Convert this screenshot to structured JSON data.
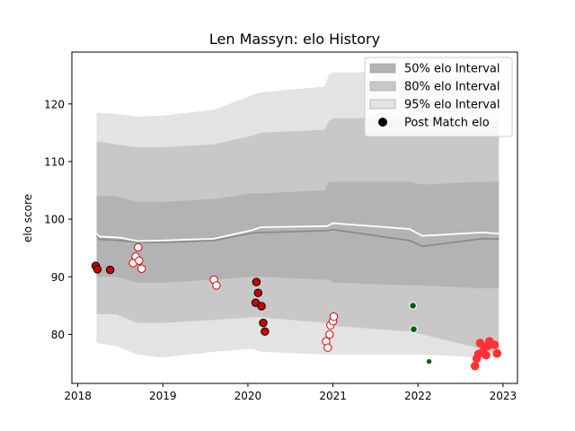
{
  "chart_data": {
    "type": "scatter",
    "title": "Len Massyn: elo History",
    "xlabel": "",
    "ylabel": "elo score",
    "xlim": [
      2017.93,
      2023.17
    ],
    "ylim": [
      71.5,
      129.0
    ],
    "x_ticks": [
      2018,
      2019,
      2020,
      2021,
      2022,
      2023
    ],
    "y_ticks": [
      80,
      90,
      100,
      110,
      120
    ],
    "grid": false,
    "legend_position": "top-right",
    "legend": [
      {
        "label": "50% elo Interval",
        "kind": "patch",
        "color": "#b3b3b3"
      },
      {
        "label": "80% elo Interval",
        "kind": "patch",
        "color": "#c8c8c8"
      },
      {
        "label": "95% elo Interval",
        "kind": "patch",
        "color": "#e3e3e3"
      },
      {
        "label": "Post Match elo",
        "kind": "marker",
        "color": "#000000"
      }
    ],
    "band_x": [
      2018.22,
      2018.45,
      2018.7,
      2019.0,
      2019.6,
      2020.05,
      2020.15,
      2020.9,
      2020.95,
      2021.0,
      2021.9,
      2022.05,
      2022.75,
      2022.95
    ],
    "band_95_upper": [
      118.5,
      118.3,
      117.8,
      118.0,
      119.0,
      121.5,
      122.0,
      123.0,
      125.0,
      125.5,
      125.5,
      125.0,
      125.0,
      125.5
    ],
    "band_95_lower": [
      78.5,
      78.0,
      76.5,
      76.0,
      77.0,
      77.5,
      77.0,
      76.5,
      76.5,
      76.5,
      76.5,
      76.5,
      76.0,
      76.0
    ],
    "band_80_upper": [
      113.5,
      113.0,
      112.5,
      112.5,
      113.0,
      114.5,
      115.0,
      115.5,
      117.0,
      117.5,
      117.5,
      117.5,
      117.0,
      117.0
    ],
    "band_80_lower": [
      83.5,
      83.5,
      82.0,
      82.0,
      82.5,
      83.0,
      83.0,
      82.0,
      82.0,
      81.5,
      80.5,
      80.0,
      77.5,
      76.5
    ],
    "band_50_upper": [
      104.0,
      104.0,
      103.0,
      103.0,
      103.5,
      104.5,
      104.5,
      105.0,
      106.5,
      106.5,
      106.5,
      106.0,
      106.5,
      106.5
    ],
    "band_50_lower": [
      90.0,
      90.0,
      89.0,
      89.0,
      89.5,
      90.0,
      90.0,
      89.5,
      89.5,
      89.0,
      88.5,
      88.5,
      88.0,
      88.0
    ],
    "mean_x": [
      2018.22,
      2018.25,
      2018.5,
      2018.7,
      2019.0,
      2019.6,
      2020.05,
      2020.15,
      2020.93,
      2021.0,
      2021.9,
      2022.05,
      2022.75,
      2022.95
    ],
    "mean_gray": [
      97.2,
      96.5,
      96.3,
      96.0,
      96.0,
      96.3,
      97.6,
      97.7,
      98.0,
      98.2,
      96.3,
      95.3,
      96.6,
      96.6
    ],
    "mean_white": [
      97.5,
      97.0,
      96.8,
      96.2,
      96.3,
      96.6,
      98.1,
      98.6,
      98.8,
      99.3,
      98.3,
      97.1,
      97.7,
      97.5
    ],
    "points": [
      {
        "x": 2018.21,
        "y": 91.9,
        "fill": "#cc0000",
        "edge": "#000000",
        "r": 4.2
      },
      {
        "x": 2018.23,
        "y": 91.3,
        "fill": "#cc0000",
        "edge": "#000000",
        "r": 4.2
      },
      {
        "x": 2018.38,
        "y": 91.2,
        "fill": "#cc0000",
        "edge": "#000000",
        "r": 4.2
      },
      {
        "x": 2018.65,
        "y": 92.4,
        "fill": "#ffffff",
        "edge": "#dd0000",
        "r": 4.2
      },
      {
        "x": 2018.68,
        "y": 93.5,
        "fill": "#ffffff",
        "edge": "#dd0000",
        "r": 4.2
      },
      {
        "x": 2018.71,
        "y": 95.1,
        "fill": "#ffffff",
        "edge": "#dd0000",
        "r": 4.2
      },
      {
        "x": 2018.72,
        "y": 92.8,
        "fill": "#ffffff",
        "edge": "#dd0000",
        "r": 4.2
      },
      {
        "x": 2018.75,
        "y": 91.4,
        "fill": "#ffffff",
        "edge": "#dd0000",
        "r": 4.2
      },
      {
        "x": 2019.6,
        "y": 89.5,
        "fill": "#ffffff",
        "edge": "#dd0000",
        "r": 4.2
      },
      {
        "x": 2019.63,
        "y": 88.5,
        "fill": "#ffffff",
        "edge": "#dd0000",
        "r": 4.2
      },
      {
        "x": 2020.1,
        "y": 89.1,
        "fill": "#cc0000",
        "edge": "#000000",
        "r": 4.2
      },
      {
        "x": 2020.12,
        "y": 87.2,
        "fill": "#cc0000",
        "edge": "#000000",
        "r": 4.2
      },
      {
        "x": 2020.09,
        "y": 85.5,
        "fill": "#cc0000",
        "edge": "#000000",
        "r": 4.2
      },
      {
        "x": 2020.16,
        "y": 84.9,
        "fill": "#cc0000",
        "edge": "#000000",
        "r": 4.2
      },
      {
        "x": 2020.18,
        "y": 82.0,
        "fill": "#cc0000",
        "edge": "#000000",
        "r": 4.2
      },
      {
        "x": 2020.2,
        "y": 80.5,
        "fill": "#cc0000",
        "edge": "#000000",
        "r": 4.2
      },
      {
        "x": 2020.92,
        "y": 78.8,
        "fill": "#ffffff",
        "edge": "#dd0000",
        "r": 4.2
      },
      {
        "x": 2020.94,
        "y": 77.7,
        "fill": "#ffffff",
        "edge": "#dd0000",
        "r": 4.2
      },
      {
        "x": 2020.96,
        "y": 80.0,
        "fill": "#ffffff",
        "edge": "#dd0000",
        "r": 4.2
      },
      {
        "x": 2020.97,
        "y": 81.6,
        "fill": "#ffffff",
        "edge": "#dd0000",
        "r": 4.2
      },
      {
        "x": 2021.0,
        "y": 82.3,
        "fill": "#ffffff",
        "edge": "#dd0000",
        "r": 4.2
      },
      {
        "x": 2021.01,
        "y": 83.1,
        "fill": "#ffffff",
        "edge": "#dd0000",
        "r": 4.2
      },
      {
        "x": 2021.94,
        "y": 85.0,
        "fill": "#006400",
        "edge": "#ffffff",
        "r": 3.8
      },
      {
        "x": 2021.95,
        "y": 80.9,
        "fill": "#006400",
        "edge": "#ffffff",
        "r": 3.8
      },
      {
        "x": 2022.13,
        "y": 75.3,
        "fill": "#006400",
        "edge": "#ffffff",
        "r": 3.2
      },
      {
        "x": 2022.67,
        "y": 74.5,
        "fill": "#ff3333",
        "edge": "#ff3333",
        "r": 4.3
      },
      {
        "x": 2022.69,
        "y": 75.8,
        "fill": "#ff3333",
        "edge": "#ff3333",
        "r": 4.3
      },
      {
        "x": 2022.71,
        "y": 76.6,
        "fill": "#ff3333",
        "edge": "#ff3333",
        "r": 4.3
      },
      {
        "x": 2022.73,
        "y": 78.5,
        "fill": "#ff3333",
        "edge": "#ff3333",
        "r": 4.3
      },
      {
        "x": 2022.76,
        "y": 76.9,
        "fill": "#ff3333",
        "edge": "#ff3333",
        "r": 4.3
      },
      {
        "x": 2022.78,
        "y": 77.8,
        "fill": "#ff3333",
        "edge": "#ff3333",
        "r": 4.3
      },
      {
        "x": 2022.8,
        "y": 76.4,
        "fill": "#ff3333",
        "edge": "#ff3333",
        "r": 4.3
      },
      {
        "x": 2022.82,
        "y": 78.0,
        "fill": "#ff3333",
        "edge": "#ff3333",
        "r": 4.3
      },
      {
        "x": 2022.84,
        "y": 78.8,
        "fill": "#ff3333",
        "edge": "#ff3333",
        "r": 4.3
      },
      {
        "x": 2022.9,
        "y": 78.2,
        "fill": "#ff3333",
        "edge": "#ff3333",
        "r": 4.3
      },
      {
        "x": 2022.93,
        "y": 76.7,
        "fill": "#ff3333",
        "edge": "#ff3333",
        "r": 4.3
      }
    ]
  }
}
